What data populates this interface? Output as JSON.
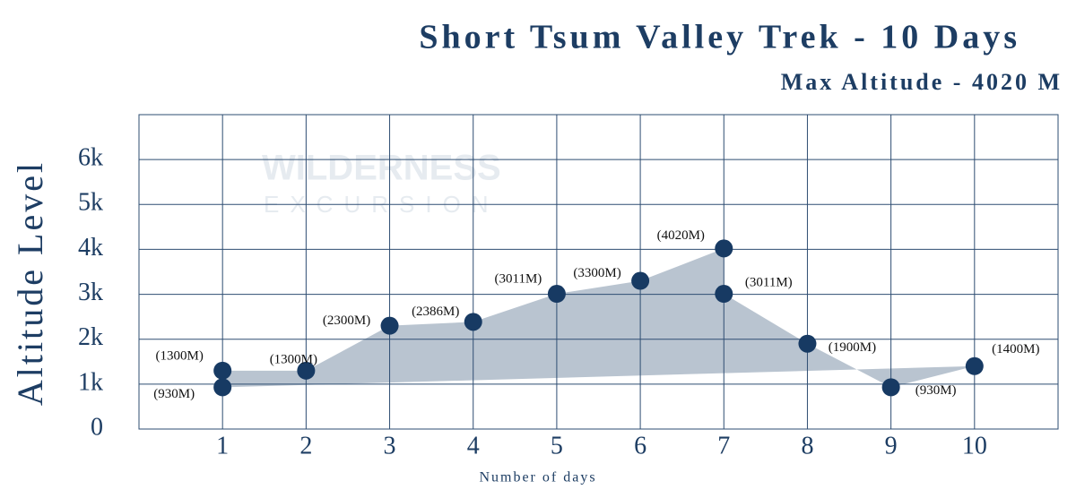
{
  "chart_data": {
    "type": "area",
    "title": "Short Tsum Valley Trek - 10 Days",
    "subtitle": "Max Altitude - 4020 M",
    "y_label": "Altitude Level",
    "x_label": "Number of days",
    "watermark": [
      "WILDERNESS",
      "EXCURSION"
    ],
    "x": [
      1,
      1,
      2,
      3,
      4,
      5,
      6,
      7,
      7,
      8,
      9,
      10
    ],
    "values": [
      930,
      1300,
      1300,
      2300,
      2386,
      3011,
      3300,
      4020,
      3011,
      1900,
      930,
      1400
    ],
    "value_labels": [
      "(930M)",
      "(1300M)",
      "(1300M)",
      "(2300M)",
      "(2386M)",
      "(3011M)",
      "(3300M)",
      "(4020M)",
      "(3011M)",
      "(1900M)",
      "(930M)",
      "(1400M)"
    ],
    "color": "#173a63",
    "fill_color": "#b9c4d0",
    "xlim": [
      0,
      11
    ],
    "xticks": [
      1,
      2,
      3,
      4,
      5,
      6,
      7,
      8,
      9,
      10
    ],
    "ylim": [
      0,
      7000
    ],
    "yticks": [
      {
        "value": 0,
        "label": "0"
      },
      {
        "value": 1000,
        "label": "1k"
      },
      {
        "value": 2000,
        "label": "2k"
      },
      {
        "value": 3000,
        "label": "3k"
      },
      {
        "value": 4000,
        "label": "4k"
      },
      {
        "value": 5000,
        "label": "5k"
      },
      {
        "value": 6000,
        "label": "6k"
      }
    ],
    "grid": true
  }
}
